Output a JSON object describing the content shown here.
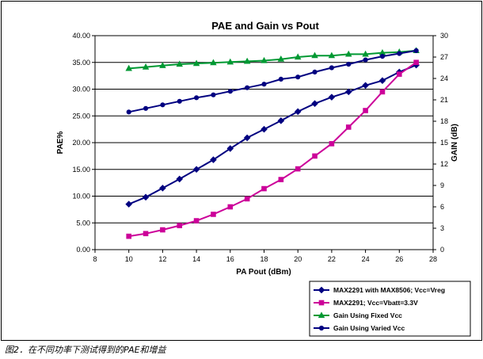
{
  "chart_data": {
    "type": "line",
    "title": "PAE and Gain vs Pout",
    "xlabel": "PA Pout (dBm)",
    "ylabel": "PAE%",
    "y2label": "GAIN (dB)",
    "xlim": [
      8,
      28
    ],
    "ylim": [
      0,
      40
    ],
    "y2lim": [
      0,
      30
    ],
    "x_ticks": [
      "8",
      "10",
      "12",
      "14",
      "16",
      "18",
      "20",
      "22",
      "24",
      "26",
      "28"
    ],
    "y_ticks": [
      "0.00",
      "5.00",
      "10.00",
      "15.00",
      "20.00",
      "25.00",
      "30.00",
      "35.00",
      "40.00"
    ],
    "y2_ticks": [
      "0",
      "3",
      "6",
      "9",
      "12",
      "15",
      "18",
      "21",
      "24",
      "27",
      "30"
    ],
    "grid": "horizontal",
    "legend_position": "bottom-right",
    "series": [
      {
        "name": "MAX2291 with MAX8506; Vcc=Vreg",
        "axis": "left",
        "color": "#000080",
        "marker": "diamond",
        "x": [
          10,
          11,
          12,
          13,
          14,
          15,
          16,
          17,
          18,
          19,
          20,
          21,
          22,
          23,
          24,
          25,
          26,
          27
        ],
        "values": [
          8.5,
          9.8,
          11.5,
          13.2,
          15.0,
          16.8,
          18.9,
          20.9,
          22.5,
          24.1,
          25.8,
          27.3,
          28.5,
          29.5,
          30.7,
          31.6,
          33.2,
          34.5
        ]
      },
      {
        "name": "MAX2291; Vcc=Vbatt=3.3V",
        "axis": "left",
        "color": "#cc0099",
        "marker": "square",
        "x": [
          10,
          11,
          12,
          13,
          14,
          15,
          16,
          17,
          18,
          19,
          20,
          21,
          22,
          23,
          24,
          25,
          26,
          27
        ],
        "values": [
          2.5,
          3.0,
          3.7,
          4.5,
          5.4,
          6.6,
          8.0,
          9.5,
          11.4,
          13.1,
          15.1,
          17.5,
          19.8,
          22.9,
          26.0,
          29.5,
          32.8,
          35.0
        ]
      },
      {
        "name": "Gain Using Fixed Vcc",
        "axis": "right",
        "color": "#009933",
        "marker": "triangle",
        "x": [
          10,
          11,
          12,
          13,
          14,
          15,
          16,
          17,
          18,
          19,
          20,
          21,
          22,
          23,
          24,
          25,
          26,
          27
        ],
        "values": [
          25.4,
          25.6,
          25.8,
          26.0,
          26.1,
          26.2,
          26.3,
          26.4,
          26.5,
          26.7,
          27.0,
          27.2,
          27.2,
          27.4,
          27.4,
          27.6,
          27.7,
          27.9
        ]
      },
      {
        "name": "Gain Using Varied Vcc",
        "axis": "right",
        "color": "#000080",
        "marker": "circle",
        "x": [
          10,
          11,
          12,
          13,
          14,
          15,
          16,
          17,
          18,
          19,
          20,
          21,
          22,
          23,
          24,
          25,
          26,
          27
        ],
        "values": [
          19.3,
          19.8,
          20.3,
          20.8,
          21.3,
          21.7,
          22.2,
          22.7,
          23.2,
          23.9,
          24.2,
          24.9,
          25.5,
          26.0,
          26.6,
          27.1,
          27.5,
          27.9
        ]
      }
    ]
  },
  "caption": "图2．在不同功率下测试得到的PAE和增益"
}
